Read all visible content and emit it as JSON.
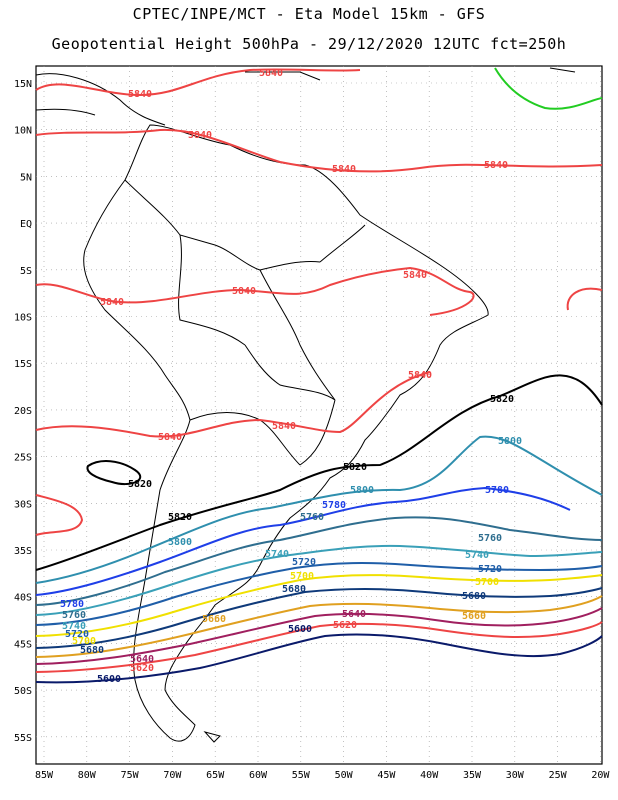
{
  "header": {
    "line1": "CPTEC/INPE/MCT -  Eta Model 15km - GFS",
    "line2": "Geopotential Height 500hPa - 29/12/2020 12UTC fct=250h"
  },
  "axes": {
    "lat_labels": [
      "15N",
      "10N",
      "5N",
      "EQ",
      "5S",
      "10S",
      "15S",
      "20S",
      "25S",
      "30S",
      "35S",
      "40S",
      "45S",
      "50S",
      "55S"
    ],
    "lon_labels": [
      "85W",
      "80W",
      "75W",
      "70W",
      "65W",
      "60W",
      "55W",
      "50W",
      "45W",
      "40W",
      "35W",
      "30W",
      "25W",
      "20W"
    ]
  },
  "contour_labels": {
    "c5840": "5840",
    "c5820": "5820",
    "c5800": "5800",
    "c5780": "5780",
    "c5760": "5760",
    "c5740": "5740",
    "c5720": "5720",
    "c5700": "5700",
    "c5680": "5680",
    "c5660": "5660",
    "c5640": "5640",
    "c5620": "5620",
    "c5600": "5600"
  },
  "colors": {
    "c5840": "#ee4444",
    "c5820": "#000000",
    "c5800": "#2f8fae",
    "c5780": "#1f3fe8",
    "c5760": "#2f6e8f",
    "c5740": "#3aa0b8",
    "c5720": "#1f5ea8",
    "c5700": "#f0e000",
    "c5680": "#0f3a7a",
    "c5660": "#e0a020",
    "c5640": "#a01f5f",
    "c5620": "#ee4444",
    "c5600": "#0a1a6a",
    "green": "#22cc22"
  }
}
